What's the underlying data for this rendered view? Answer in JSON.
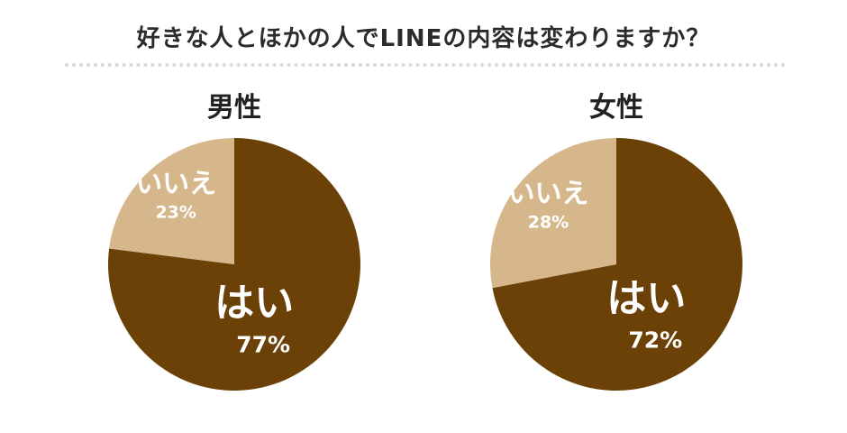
{
  "title": "好きな人とほかの人でLINEの内容は変わりますか？",
  "colors": {
    "yes": "#6b4108",
    "no": "#d6b78b",
    "label": "#ffffff"
  },
  "chart_data": [
    {
      "type": "pie",
      "title": "男性",
      "slices": [
        {
          "label": "はい",
          "value": 77,
          "value_label": "77%"
        },
        {
          "label": "いいえ",
          "value": 23,
          "value_label": "23%"
        }
      ]
    },
    {
      "type": "pie",
      "title": "女性",
      "slices": [
        {
          "label": "はい",
          "value": 72,
          "value_label": "72%"
        },
        {
          "label": "いいえ",
          "value": 28,
          "value_label": "28%"
        }
      ]
    }
  ]
}
